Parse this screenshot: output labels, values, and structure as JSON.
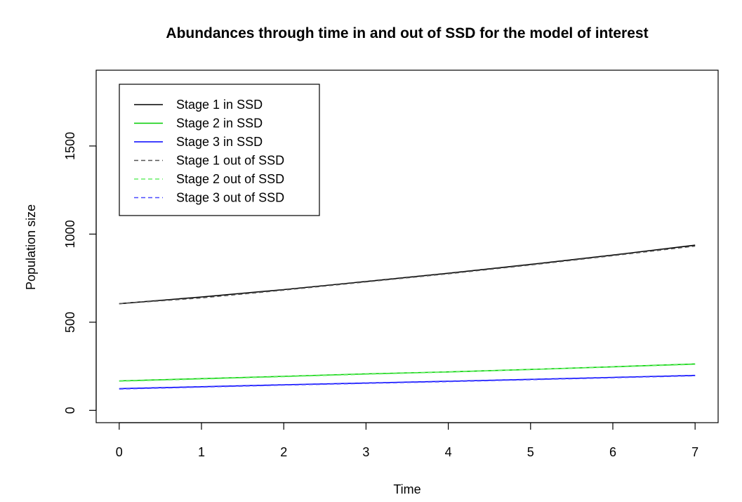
{
  "chart_data": {
    "type": "line",
    "title": "Abundances through time in and out of SSD for the model of interest",
    "xlabel": "Time",
    "ylabel": "Population size",
    "xlim": [
      -0.28,
      7.28
    ],
    "ylim": [
      -70,
      1930
    ],
    "xticks": [
      0,
      1,
      2,
      3,
      4,
      5,
      6,
      7
    ],
    "yticks": [
      0,
      500,
      1000,
      1500
    ],
    "grid": false,
    "legend_position": "top-left",
    "x": [
      0,
      1,
      2,
      3,
      4,
      5,
      6,
      7
    ],
    "series": [
      {
        "name": "Stage 1 in SSD",
        "color": "#000000",
        "dash": "solid",
        "values": [
          605,
          643,
          685,
          731,
          778,
          828,
          881,
          937
        ]
      },
      {
        "name": "Stage 2 in SSD",
        "color": "#00cc00",
        "dash": "solid",
        "values": [
          167,
          180,
          193,
          207,
          218,
          232,
          247,
          263
        ]
      },
      {
        "name": "Stage 3 in SSD",
        "color": "#0000ff",
        "dash": "solid",
        "values": [
          123,
          134,
          145,
          155,
          165,
          176,
          187,
          198
        ]
      },
      {
        "name": "Stage 1 out of SSD",
        "color": "#555555",
        "dash": "dashed",
        "values": [
          605,
          638,
          682,
          729,
          775,
          825,
          878,
          932
        ]
      },
      {
        "name": "Stage 2 out of SSD",
        "color": "#66ee66",
        "dash": "dashed",
        "values": [
          165,
          178,
          191,
          205,
          217,
          231,
          246,
          261
        ]
      },
      {
        "name": "Stage 3 out of SSD",
        "color": "#4a4aff",
        "dash": "dashed",
        "values": [
          121,
          132,
          143,
          153,
          163,
          174,
          185,
          196
        ]
      }
    ]
  }
}
